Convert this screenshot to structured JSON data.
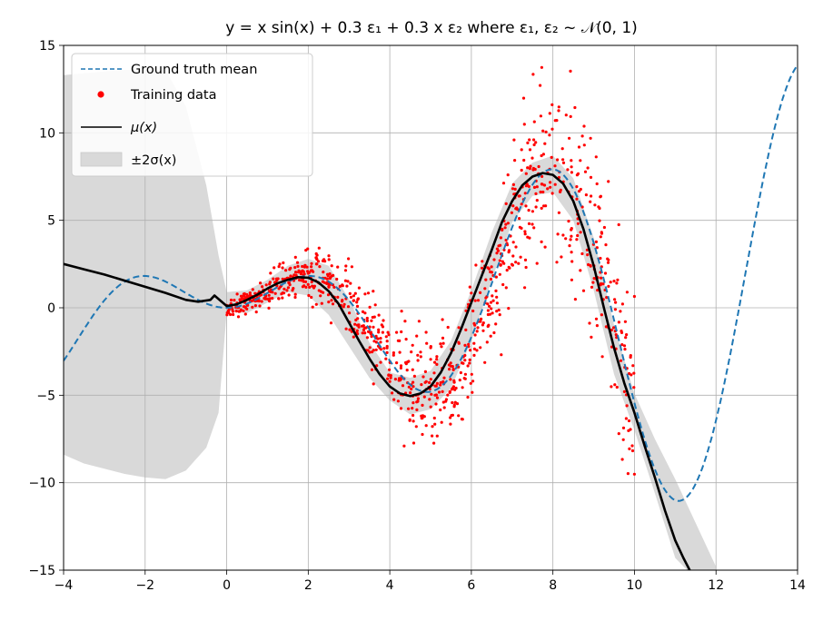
{
  "chart_data": {
    "type": "line",
    "title": "y = x sin(x) + 0.3 ε₁ + 0.3 x ε₂ where ε₁, ε₂ ~ 𝒩(0, 1)",
    "xlabel": "",
    "ylabel": "",
    "xlim": [
      -4,
      14
    ],
    "ylim": [
      -15,
      15
    ],
    "xticks": [
      -4,
      -2,
      0,
      2,
      4,
      6,
      8,
      10,
      12,
      14
    ],
    "xtick_labels": [
      "−4",
      "−2",
      "0",
      "2",
      "4",
      "6",
      "8",
      "10",
      "12",
      "14"
    ],
    "yticks": [
      -15,
      -10,
      -5,
      0,
      5,
      10,
      15
    ],
    "ytick_labels": [
      "−15",
      "−10",
      "−5",
      "0",
      "5",
      "10",
      "15"
    ],
    "grid": true,
    "legend_position": "top-left",
    "legend": [
      {
        "label": "Ground truth mean",
        "style": "dashed-line",
        "color": "#1f77b4"
      },
      {
        "label": "Training data",
        "style": "dot",
        "color": "#ff0000"
      },
      {
        "label": "μ(x)",
        "style": "solid-line",
        "color": "#000000"
      },
      {
        "label": "±2σ(x)",
        "style": "band",
        "color": "#d9d9d9"
      }
    ],
    "series": [
      {
        "name": "Ground truth mean",
        "kind": "dashed-line",
        "color": "#1f77b4",
        "function": "x*sin(x)",
        "x_range": [
          -4,
          14
        ]
      },
      {
        "name": "μ(x)",
        "kind": "line",
        "color": "#000000",
        "x": [
          -4.0,
          -3.5,
          -3.0,
          -2.5,
          -2.0,
          -1.5,
          -1.0,
          -0.7,
          -0.4,
          -0.3,
          -0.2,
          0.0,
          0.25,
          0.5,
          0.75,
          1.0,
          1.25,
          1.5,
          1.75,
          2.0,
          2.25,
          2.5,
          2.75,
          3.0,
          3.25,
          3.5,
          3.75,
          4.0,
          4.25,
          4.5,
          4.75,
          5.0,
          5.25,
          5.5,
          5.75,
          6.0,
          6.25,
          6.5,
          6.75,
          7.0,
          7.25,
          7.5,
          7.75,
          8.0,
          8.25,
          8.5,
          8.75,
          9.0,
          9.25,
          9.5,
          9.75,
          10.0,
          10.25,
          10.5,
          10.75,
          11.0,
          11.2,
          11.4
        ],
        "y": [
          2.5,
          2.2,
          1.9,
          1.55,
          1.2,
          0.85,
          0.45,
          0.35,
          0.45,
          0.7,
          0.5,
          0.1,
          0.2,
          0.45,
          0.75,
          1.1,
          1.4,
          1.6,
          1.75,
          1.72,
          1.45,
          0.95,
          0.2,
          -0.85,
          -1.9,
          -2.9,
          -3.8,
          -4.5,
          -4.9,
          -5.05,
          -4.9,
          -4.5,
          -3.7,
          -2.6,
          -1.2,
          0.3,
          1.8,
          3.3,
          4.9,
          6.1,
          7.0,
          7.5,
          7.7,
          7.6,
          7.1,
          6.1,
          4.5,
          2.4,
          0.0,
          -2.3,
          -4.3,
          -6.0,
          -7.9,
          -9.7,
          -11.6,
          -13.3,
          -14.3,
          -15.2
        ]
      },
      {
        "name": "±2σ(x)",
        "kind": "band",
        "color": "#d9d9d9",
        "x": [
          -4.0,
          -3.5,
          -3.0,
          -2.5,
          -2.0,
          -1.5,
          -1.0,
          -0.5,
          -0.2,
          0.0,
          0.5,
          1.0,
          1.5,
          2.0,
          2.5,
          3.0,
          3.5,
          4.0,
          4.5,
          5.0,
          5.5,
          6.0,
          6.5,
          7.0,
          7.5,
          8.0,
          8.5,
          9.0,
          9.5,
          10.0,
          10.5,
          11.0,
          11.5,
          12.0
        ],
        "upper": [
          13.3,
          13.4,
          13.5,
          13.6,
          13.6,
          13.6,
          11.5,
          7.0,
          3.0,
          0.9,
          1.0,
          1.6,
          2.4,
          2.8,
          2.4,
          0.5,
          -2.0,
          -3.7,
          -4.0,
          -3.6,
          -1.9,
          1.0,
          4.3,
          7.1,
          8.3,
          8.7,
          7.4,
          4.0,
          -1.0,
          -4.9,
          -7.5,
          -9.8,
          -12.3,
          -14.8
        ],
        "lower": [
          -8.4,
          -8.9,
          -9.2,
          -9.5,
          -9.7,
          -9.8,
          -9.3,
          -8.0,
          -6.0,
          -0.2,
          -0.3,
          0.3,
          0.9,
          0.7,
          -0.4,
          -2.2,
          -4.0,
          -5.3,
          -6.1,
          -5.8,
          -4.6,
          -1.9,
          1.6,
          4.9,
          6.4,
          6.6,
          5.0,
          1.0,
          -3.8,
          -7.0,
          -10.6,
          -14.3,
          -15.5,
          -16.0
        ]
      },
      {
        "name": "Training data",
        "kind": "scatter",
        "color": "#ff0000",
        "x_range": [
          0,
          10
        ],
        "count": 1000
      }
    ]
  }
}
